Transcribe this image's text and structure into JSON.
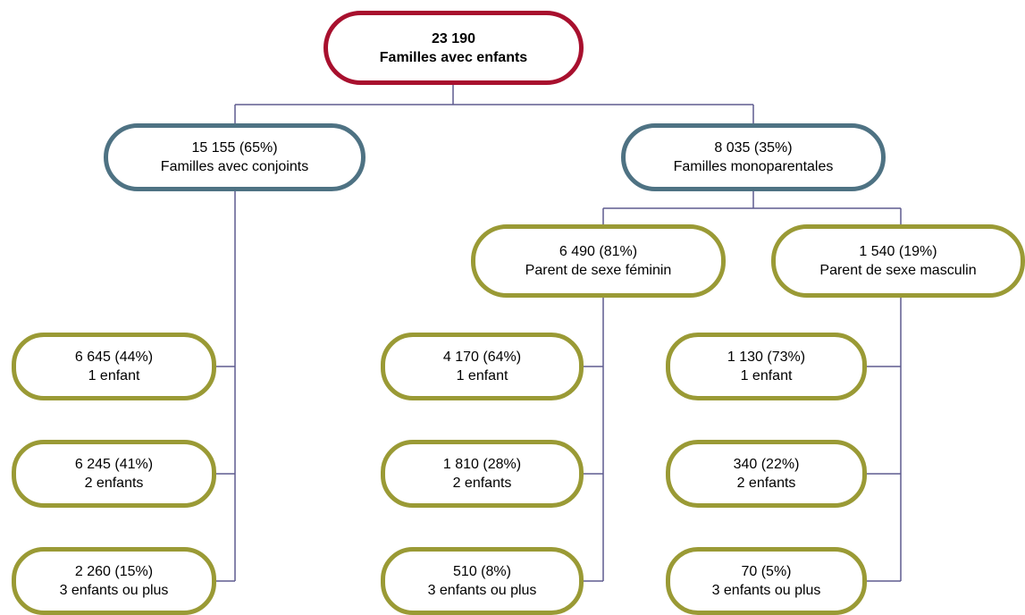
{
  "colors": {
    "root_border": "#a8102e",
    "level1_border": "#4e7283",
    "level2_border": "#9a9a35",
    "connector": "#5e5b8f"
  },
  "root": {
    "count": "23 190",
    "label": "Familles avec enfants"
  },
  "couples": {
    "count": "15 155 (65%)",
    "label": "Familles avec conjoints",
    "children": [
      {
        "count": "6 645 (44%)",
        "label": "1 enfant"
      },
      {
        "count": "6 245 (41%)",
        "label": "2 enfants"
      },
      {
        "count": "2 260 (15%)",
        "label": "3 enfants ou plus"
      }
    ]
  },
  "lone_parent": {
    "count": "8 035 (35%)",
    "label": "Familles monoparentales",
    "female": {
      "count": "6 490 (81%)",
      "label": "Parent de sexe féminin",
      "children": [
        {
          "count": "4 170 (64%)",
          "label": "1 enfant"
        },
        {
          "count": "1 810 (28%)",
          "label": "2 enfants"
        },
        {
          "count": "510 (8%)",
          "label": "3 enfants ou plus"
        }
      ]
    },
    "male": {
      "count": "1 540 (19%)",
      "label": "Parent de sexe masculin",
      "children": [
        {
          "count": "1 130 (73%)",
          "label": "1 enfant"
        },
        {
          "count": "340 (22%)",
          "label": "2 enfants"
        },
        {
          "count": "70 (5%)",
          "label": "3 enfants ou plus"
        }
      ]
    }
  }
}
